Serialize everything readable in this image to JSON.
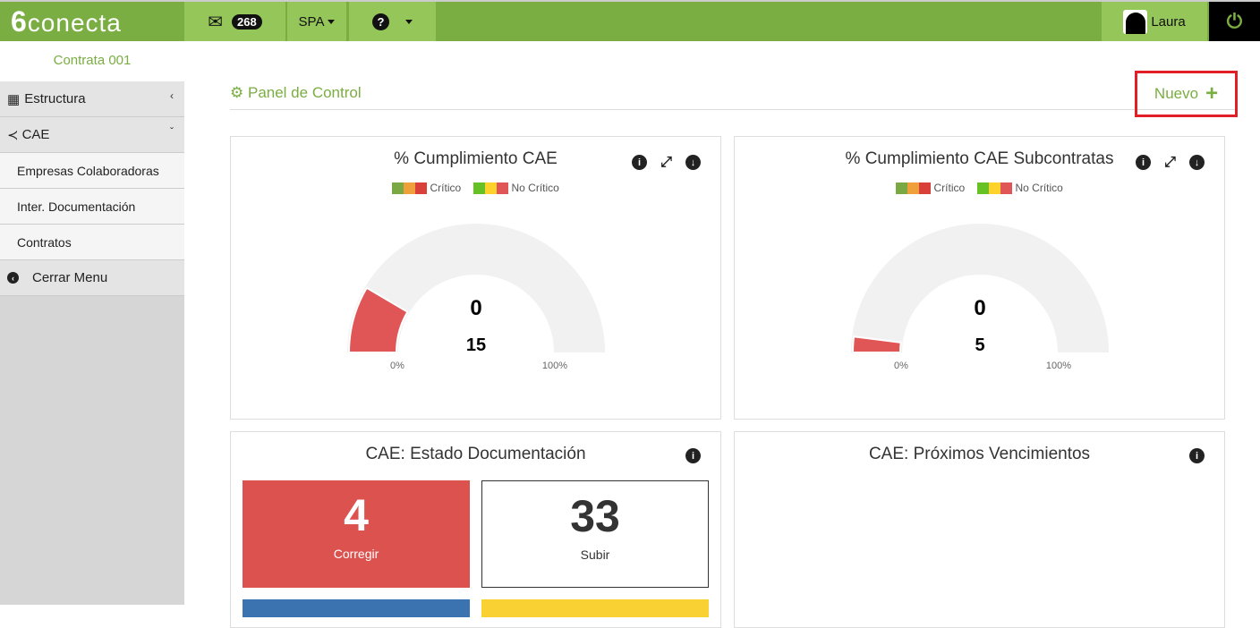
{
  "topbar": {
    "logo": "conecta",
    "logo_mark": "6",
    "messages_count": "268",
    "language": "SPA",
    "user": "Laura"
  },
  "sidebar": {
    "contract": "Contrata 001",
    "items": [
      {
        "label": "Estructura"
      },
      {
        "label": "CAE"
      },
      {
        "label": "Empresas Colaboradoras"
      },
      {
        "label": "Inter. Documentación"
      },
      {
        "label": "Contratos"
      },
      {
        "label": "Cerrar Menu"
      }
    ]
  },
  "main": {
    "title": "Panel de Control",
    "new_label": "Nuevo"
  },
  "legend": {
    "critical": "Crítico",
    "non_critical": "No Crítico"
  },
  "colors": {
    "green": "#7aad42",
    "red": "#e05555",
    "gauge_bg": "#f1f1f1"
  },
  "gauges": [
    {
      "title": "% Cumplimiento CAE",
      "value": "0",
      "count": "15",
      "fill_percent": 17,
      "min_label": "0%",
      "max_label": "100%"
    },
    {
      "title": "% Cumplimiento CAE Subcontratas",
      "value": "0",
      "count": "5",
      "fill_percent": 4,
      "min_label": "0%",
      "max_label": "100%"
    }
  ],
  "estado": {
    "title": "CAE: Estado Documentación",
    "tiles": [
      {
        "value": "4",
        "label": "Corregir"
      },
      {
        "value": "33",
        "label": "Subir"
      }
    ]
  },
  "vencimientos": {
    "title": "CAE: Próximos Vencimientos"
  }
}
